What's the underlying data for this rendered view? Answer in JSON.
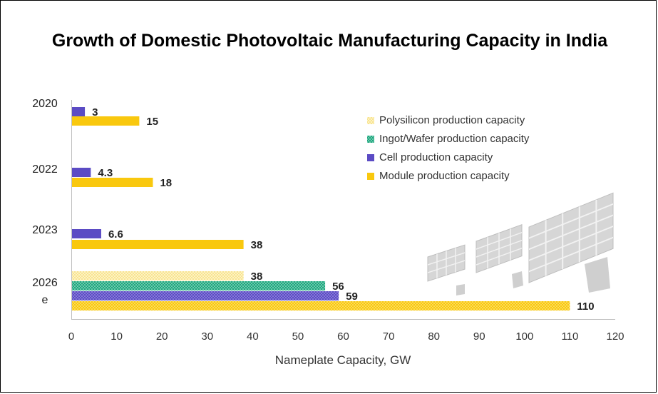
{
  "chart_data": {
    "type": "bar",
    "orientation": "horizontal",
    "title": "Growth of Domestic Photovoltaic Manufacturing Capacity in India",
    "xlabel": "Nameplate Capacity, GW",
    "ylabel": "",
    "xlim": [
      0,
      120
    ],
    "x_ticks": [
      "0",
      "10",
      "20",
      "30",
      "40",
      "50",
      "60",
      "70",
      "80",
      "90",
      "100",
      "110",
      "120"
    ],
    "grid": false,
    "legend_position": "right",
    "categories": [
      {
        "label": "2020",
        "label_line2": ""
      },
      {
        "label": "2022",
        "label_line2": ""
      },
      {
        "label": "2023",
        "label_line2": ""
      },
      {
        "label": "2026",
        "label_line2": "e"
      }
    ],
    "series": [
      {
        "name": "Polysilicon production capacity",
        "color": "#fbe9a0",
        "pattern": "dots-light",
        "values": [
          null,
          null,
          null,
          38
        ],
        "labels": [
          "",
          "",
          "",
          "38"
        ]
      },
      {
        "name": "Ingot/Wafer production capacity",
        "color": "#1ea67e",
        "pattern": "dots-teal",
        "values": [
          null,
          null,
          null,
          56
        ],
        "labels": [
          "",
          "",
          "",
          "56"
        ]
      },
      {
        "name": "Cell production capacity",
        "color": "#5b4bc4",
        "pattern": "solid",
        "values": [
          3,
          4.3,
          6.6,
          59
        ],
        "labels": [
          "3",
          "4.3",
          "6.6",
          "59"
        ]
      },
      {
        "name": "Module production capacity",
        "color": "#f9c80e",
        "pattern": "solid",
        "values": [
          15,
          18,
          38,
          110
        ],
        "labels": [
          "15",
          "18",
          "38",
          "110"
        ]
      }
    ]
  },
  "decoration": {
    "icon": "solar-panels-icon"
  }
}
